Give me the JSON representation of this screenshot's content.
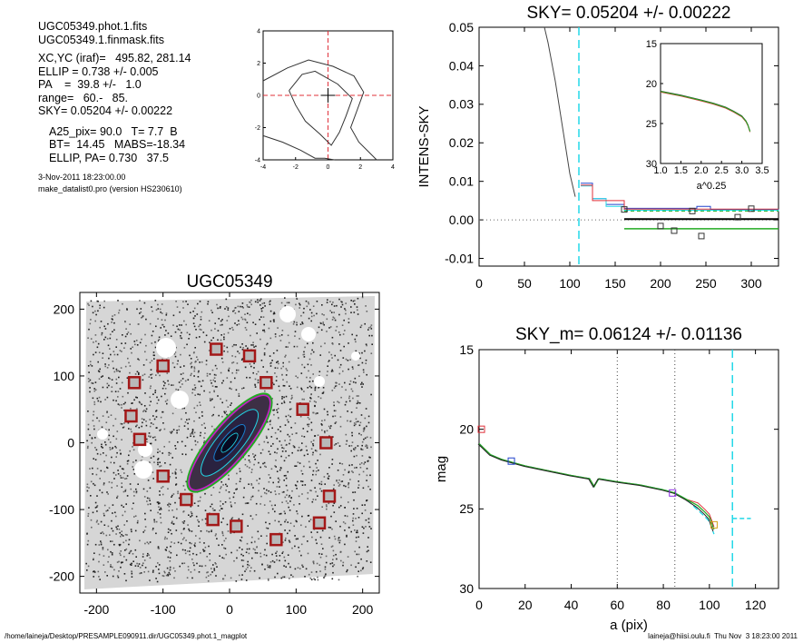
{
  "header": {
    "file_phot": "UGC05349.phot.1.fits",
    "file_mask": "UGC05349.1.finmask.fits",
    "center": "XC,YC (iraf)=   495.82, 281.14",
    "ellip": "ELLIP = 0.738 +/- 0.005",
    "pa": "PA    =  39.8 +/-   1.0",
    "range": "range=   60.-   85.",
    "sky": "SKY= 0.05204 +/- 0.00222",
    "a25": "A25_pix= 90.0   T= 7.7  B",
    "bt": "BT=  14.45   MABS=-18.34",
    "ellip_pa": "ELLIP, PA= 0.730   37.5",
    "date": "3-Nov-2011 18:23:00.00",
    "program": "make_datalist0.pro (version HS230610)"
  },
  "footer": {
    "path": "/home/laineja/Desktop/PRESAMPLE090911.dir/UGC05349.phot.1_magplot",
    "user": "laineja@hiisi.oulu.fi  Thu Nov  3 18:23:00 2011"
  },
  "colors": {
    "red": "#e0303a",
    "cyan": "#22d8e8",
    "green": "#22aa22",
    "blue": "#2244cc",
    "dark_red": "#a31818",
    "gray": "#555555"
  },
  "chart_data": [
    {
      "id": "contour",
      "type": "line",
      "title": "",
      "xlim": [
        -4,
        4
      ],
      "ylim": [
        -4,
        4
      ],
      "xticks": [
        -4,
        -2,
        0,
        2,
        4
      ],
      "yticks": [
        -4,
        -2,
        0,
        2,
        4
      ],
      "series": [
        {
          "x": [
            -4,
            -2.5,
            -1.2,
            0.3,
            1.6,
            2.2,
            1.8,
            1.4,
            1.9,
            2.5,
            3.0
          ],
          "y": [
            0.9,
            1.7,
            2.2,
            1.8,
            1.2,
            0.2,
            -0.9,
            -2.0,
            -2.9,
            -3.5,
            -4
          ]
        },
        {
          "x": [
            -2.4,
            -1.6,
            -0.8,
            0.6,
            1.5,
            1.1,
            0.7,
            0.2,
            -0.5,
            -1.4,
            -2.0,
            -2.4
          ],
          "y": [
            0.3,
            1.3,
            1.5,
            0.7,
            -0.2,
            -1.3,
            -2.3,
            -3.1,
            -2.4,
            -1.6,
            -0.6,
            0.3
          ]
        },
        {
          "x": [
            -4,
            -2.8,
            -1.7,
            -0.8,
            -0.2,
            0.4
          ],
          "y": [
            -2.5,
            -2.9,
            -3.4,
            -3.9,
            -3.9,
            -4
          ]
        }
      ]
    },
    {
      "id": "intens_sky",
      "type": "line",
      "title": "SKY= 0.05204 +/- 0.00222",
      "ylabel": "INTENS-SKY",
      "xlim": [
        0,
        330
      ],
      "ylim": [
        -0.012,
        0.05
      ],
      "xticks": [
        0,
        50,
        100,
        150,
        200,
        250,
        300
      ],
      "yticks": [
        -0.01,
        0.0,
        0.01,
        0.02,
        0.03,
        0.04,
        0.05
      ],
      "ytick_labels": [
        "-0.01",
        "0.00",
        "0.01",
        "0.02",
        "0.03",
        "0.04",
        "0.05"
      ],
      "profile_x": [
        72,
        76,
        80,
        84,
        88,
        92,
        96,
        100,
        104,
        106
      ],
      "profile_y": [
        0.05,
        0.046,
        0.041,
        0.036,
        0.03,
        0.024,
        0.018,
        0.012,
        0.008,
        0.006
      ],
      "vline_x": 110,
      "squares_x": [
        160,
        200,
        215,
        235,
        245,
        285,
        300
      ],
      "squares_y": [
        0.0027,
        -0.0016,
        -0.0028,
        0.0023,
        -0.0042,
        0.0007,
        0.0029
      ]
    },
    {
      "id": "inset",
      "type": "line",
      "title": "",
      "xlabel": "a^0.25",
      "xlim": [
        1.0,
        3.5
      ],
      "ylim": [
        15,
        30
      ],
      "xticks": [
        1.0,
        1.5,
        2.0,
        2.5,
        3.0,
        3.5
      ],
      "xtick_labels": [
        "1.0",
        "1.5",
        "2.0",
        "2.5",
        "3.0",
        "3.5"
      ],
      "yticks": [
        15,
        20,
        25,
        30
      ],
      "x": [
        1.0,
        1.5,
        2.0,
        2.3,
        2.6,
        2.8,
        3.0,
        3.1,
        3.15,
        3.2
      ],
      "y": [
        21.0,
        21.5,
        22.1,
        22.5,
        23.0,
        23.5,
        24.1,
        24.7,
        25.2,
        26.0
      ]
    },
    {
      "id": "mag_profile",
      "type": "line",
      "title": "SKY_m=  0.06124 +/- 0.01136",
      "xlabel": "a (pix)",
      "ylabel": "mag",
      "xlim": [
        0,
        130
      ],
      "ylim": [
        15,
        30
      ],
      "xticks": [
        0,
        20,
        40,
        60,
        80,
        100,
        120
      ],
      "yticks": [
        15,
        20,
        25,
        30
      ],
      "range_lines": [
        60,
        85
      ],
      "sky_line_x": 110,
      "x": [
        0,
        5,
        10,
        15,
        20,
        30,
        40,
        48,
        50,
        52,
        60,
        70,
        80,
        85,
        90,
        95,
        98,
        100,
        101,
        102
      ],
      "y": [
        20.9,
        21.6,
        21.9,
        22.1,
        22.3,
        22.6,
        22.9,
        23.1,
        23.6,
        23.1,
        23.3,
        23.5,
        23.8,
        24.0,
        24.4,
        24.8,
        25.2,
        25.5,
        25.9,
        26.3
      ],
      "squares_x": [
        1,
        14,
        84,
        102
      ],
      "squares_y": [
        20.0,
        22.0,
        24.0,
        26.0
      ]
    },
    {
      "id": "galaxy_image",
      "type": "scatter",
      "title": "UGC05349",
      "xlim": [
        -225,
        225
      ],
      "ylim": [
        -225,
        225
      ],
      "xticks": [
        -200,
        -100,
        0,
        100,
        200
      ],
      "yticks": [
        -200,
        -100,
        0,
        100,
        200
      ],
      "ellipse_pa_deg": 39.8,
      "ellipse_axes": [
        90,
        24
      ],
      "markers_x": [
        -143,
        -100,
        -148,
        -135,
        -100,
        -65,
        -25,
        -20,
        30,
        10,
        55,
        110,
        145,
        150,
        135,
        70
      ],
      "markers_y": [
        90,
        115,
        40,
        5,
        -50,
        -85,
        -115,
        140,
        130,
        -125,
        90,
        50,
        0,
        -80,
        -120,
        -145
      ]
    }
  ]
}
